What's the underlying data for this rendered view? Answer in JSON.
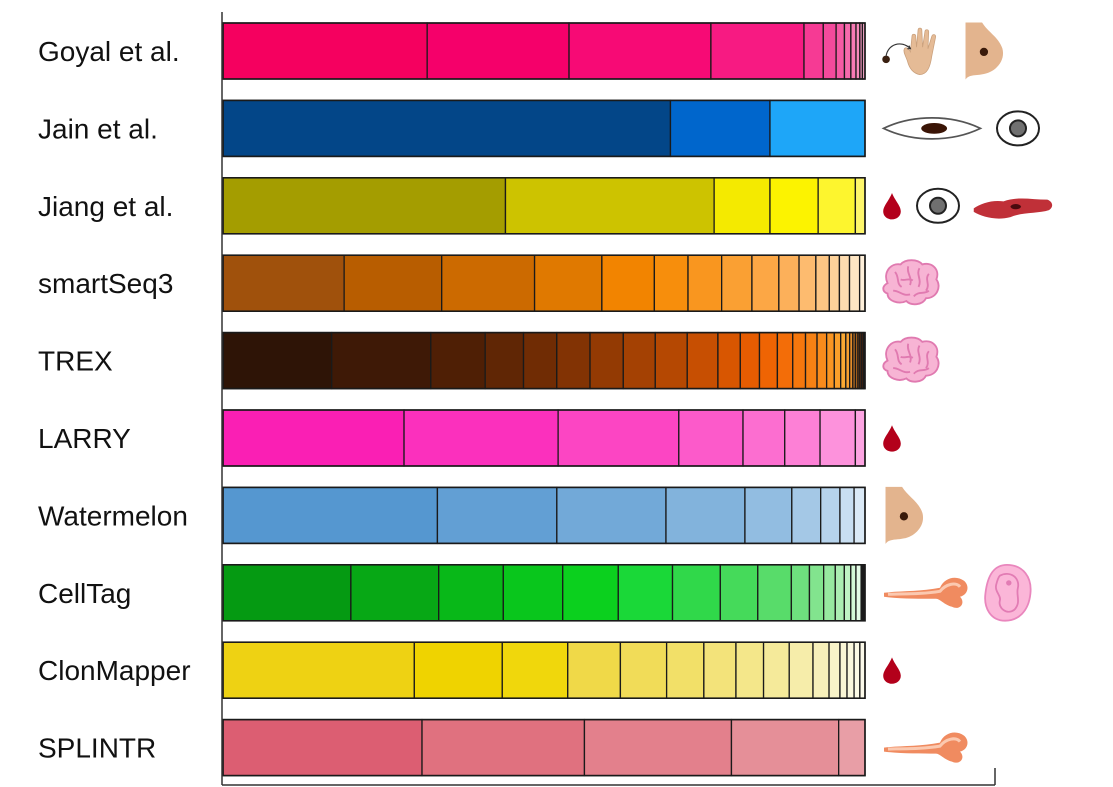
{
  "chart_data": {
    "type": "bar",
    "orientation": "horizontal",
    "stacked": true,
    "normalized": true,
    "categories": [
      "Goyal et al.",
      "Jain et al.",
      "Jiang et al.",
      "smartSeq3",
      "TREX",
      "LARRY",
      "Watermelon",
      "CellTag",
      "ClonMapper",
      "SPLINTR"
    ],
    "rows": [
      {
        "label": "Goyal et al.",
        "segments": [
          0.318,
          0.221,
          0.221,
          0.145,
          0.03,
          0.02,
          0.013,
          0.01,
          0.008,
          0.006,
          0.004,
          0.004
        ],
        "colors": [
          "#f5005f",
          "#f5006a",
          "#f70a75",
          "#f71a82",
          "#f63a94",
          "#f44a9c",
          "#f65aa4",
          "#f66aac",
          "#f77ab4",
          "#f88abb",
          "#f99ac4",
          "#faaacc"
        ],
        "tissue_icons": [
          "hand-skin-icon",
          "breast-icon"
        ]
      },
      {
        "label": "Jain et al.",
        "segments": [
          0.697,
          0.155,
          0.148
        ],
        "colors": [
          "#034688",
          "#0066cc",
          "#1ea6f8"
        ],
        "tissue_icons": [
          "eye-icon",
          "eyeball-icon"
        ]
      },
      {
        "label": "Jiang et al.",
        "segments": [
          0.44,
          0.325,
          0.087,
          0.075,
          0.058,
          0.015
        ],
        "colors": [
          "#a49d00",
          "#cdc300",
          "#f4ea00",
          "#fcf300",
          "#fdf52e",
          "#fef66a"
        ],
        "tissue_icons": [
          "blood-drop-icon",
          "eyeball-icon",
          "muscle-tissue-icon"
        ]
      },
      {
        "label": "smartSeq3",
        "segments": [
          0.18,
          0.145,
          0.138,
          0.1,
          0.078,
          0.05,
          0.05,
          0.045,
          0.04,
          0.03,
          0.025,
          0.02,
          0.015,
          0.015,
          0.015,
          0.008
        ],
        "colors": [
          "#a0510c",
          "#b85d00",
          "#cc6a00",
          "#e07900",
          "#f28400",
          "#f78e0c",
          "#f9961f",
          "#faa033",
          "#fca745",
          "#fcb05a",
          "#fdbb6f",
          "#fdc684",
          "#fdd29a",
          "#fedcb0",
          "#fee6c4",
          "#fff0da"
        ],
        "tissue_icons": [
          "brain-icon"
        ]
      },
      {
        "label": "TREX",
        "segments": [
          0.17,
          0.155,
          0.085,
          0.06,
          0.052,
          0.052,
          0.052,
          0.05,
          0.05,
          0.048,
          0.035,
          0.03,
          0.028,
          0.024,
          0.02,
          0.018,
          0.015,
          0.012,
          0.01,
          0.008,
          0.006,
          0.005,
          0.004,
          0.004,
          0.003,
          0.003,
          0.003,
          0.002
        ],
        "colors": [
          "#2e1406",
          "#3e1906",
          "#4f1f05",
          "#602605",
          "#702c04",
          "#823304",
          "#933a03",
          "#a44103",
          "#b54802",
          "#c74f02",
          "#d85601",
          "#e65c01",
          "#ef6403",
          "#f36d08",
          "#f5770d",
          "#f68114",
          "#f88b1c",
          "#f99522",
          "#fa9f2a",
          "#fba933",
          "#f7a030",
          "#e58d2a",
          "#c87723",
          "#a9611d",
          "#8a4b17",
          "#6c3611",
          "#4f230b",
          "#2a1206"
        ],
        "tissue_icons": [
          "brain-icon"
        ]
      },
      {
        "label": "LARRY",
        "segments": [
          0.282,
          0.24,
          0.188,
          0.1,
          0.065,
          0.055,
          0.055,
          0.015
        ],
        "colors": [
          "#fa1fb4",
          "#fb30bd",
          "#fc45c3",
          "#fc5aca",
          "#fc6ed0",
          "#fd80d6",
          "#fd92dc",
          "#fda4e2"
        ],
        "tissue_icons": [
          "blood-drop-icon"
        ]
      },
      {
        "label": "Watermelon",
        "segments": [
          0.334,
          0.186,
          0.17,
          0.123,
          0.073,
          0.045,
          0.03,
          0.022,
          0.017
        ],
        "colors": [
          "#5597d0",
          "#629fd4",
          "#72a9d8",
          "#82b3dc",
          "#92bde1",
          "#a4c8e6",
          "#b6d3ec",
          "#c8def1",
          "#dae9f6"
        ],
        "tissue_icons": [
          "breast-icon"
        ]
      },
      {
        "label": "CellTag",
        "segments": [
          0.198,
          0.136,
          0.1,
          0.092,
          0.086,
          0.084,
          0.074,
          0.058,
          0.052,
          0.028,
          0.022,
          0.018,
          0.014,
          0.01,
          0.008,
          0.008,
          0.006
        ],
        "colors": [
          "#059a12",
          "#07a815",
          "#08b818",
          "#09c61c",
          "#0bd01e",
          "#1ad838",
          "#30d84a",
          "#45da5a",
          "#58dc6a",
          "#6ee07e",
          "#82e48e",
          "#97e9a0",
          "#abeeb2",
          "#bff3c4",
          "#d3f7d6",
          "#e4fae6",
          "#1a1a1a"
        ],
        "tissue_icons": [
          "bone-icon",
          "embryo-icon"
        ]
      },
      {
        "label": "ClonMapper",
        "segments": [
          0.298,
          0.137,
          0.102,
          0.082,
          0.072,
          0.058,
          0.05,
          0.043,
          0.04,
          0.037,
          0.025,
          0.017,
          0.011,
          0.011,
          0.009,
          0.008
        ],
        "colors": [
          "#eed213",
          "#efd300",
          "#f0d70c",
          "#f0d948",
          "#f1dc58",
          "#f2e068",
          "#f3e37a",
          "#f4e78a",
          "#f5ea9a",
          "#f6edaa",
          "#f7f0ba",
          "#f8f3c8",
          "#f9f5d4",
          "#faf7dc",
          "#fbf9e4",
          "#fcfaea"
        ],
        "tissue_icons": [
          "blood-drop-icon"
        ]
      },
      {
        "label": "SPLINTR",
        "segments": [
          0.31,
          0.253,
          0.229,
          0.167,
          0.041
        ],
        "colors": [
          "#dc5e72",
          "#e0717f",
          "#e3808c",
          "#e58f98",
          "#e89ea6"
        ],
        "tissue_icons": [
          "bone-icon"
        ]
      }
    ],
    "title": "",
    "xlabel": "",
    "ylabel": "",
    "grid": false,
    "legend": "none"
  }
}
